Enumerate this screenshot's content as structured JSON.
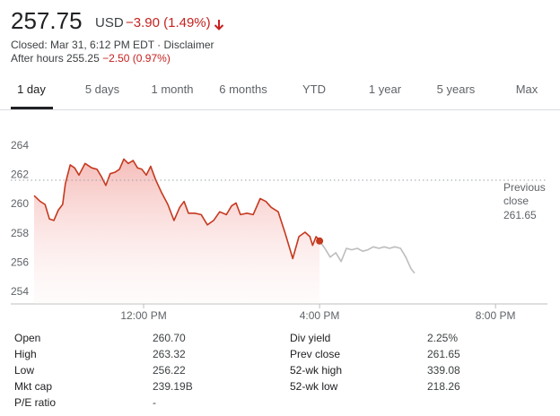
{
  "header": {
    "price": "257.75",
    "currency": "USD",
    "change": "−3.90 (1.49%)",
    "status": "Closed: Mar 31, 6:12 PM EDT · Disclaimer",
    "after_hours_label": "After hours",
    "after_hours_price": "255.25",
    "after_hours_change": "−2.50 (0.97%)"
  },
  "tabs": [
    "1 day",
    "5 days",
    "1 month",
    "6 months",
    "YTD",
    "1 year",
    "5 years",
    "Max"
  ],
  "chart_data": {
    "type": "line",
    "xlim": [
      8.98,
      21.18
    ],
    "xticks": [
      {
        "value": 12,
        "label": "12:00 PM"
      },
      {
        "value": 16,
        "label": "4:00 PM"
      },
      {
        "value": 20,
        "label": "8:00 PM"
      }
    ],
    "ylim": [
      253.2,
      264.9
    ],
    "yticks": [
      254,
      256,
      258,
      260,
      262,
      264
    ],
    "grid": false,
    "series": [
      {
        "color": "#c5391f",
        "x": [
          9.51,
          9.65,
          9.76,
          9.86,
          9.96,
          10.06,
          10.16,
          10.22,
          10.33,
          10.43,
          10.53,
          10.67,
          10.82,
          10.94,
          11.04,
          11.14,
          11.24,
          11.35,
          11.45,
          11.55,
          11.65,
          11.76,
          11.86,
          11.96,
          12.06,
          12.16,
          12.27,
          12.41,
          12.55,
          12.69,
          12.82,
          12.92,
          13.02,
          13.16,
          13.31,
          13.45,
          13.59,
          13.73,
          13.88,
          14.0,
          14.1,
          14.2,
          14.35,
          14.49,
          14.65,
          14.78,
          14.9,
          15.06,
          15.22,
          15.39,
          15.53,
          15.67,
          15.78,
          15.84,
          15.92,
          16.0
        ],
        "values": [
          260.6,
          260.2,
          260.0,
          259.0,
          258.9,
          259.6,
          260.0,
          261.4,
          262.7,
          262.5,
          262.0,
          262.8,
          262.5,
          262.4,
          261.9,
          261.3,
          262.1,
          262.2,
          262.4,
          263.1,
          262.8,
          263.0,
          262.5,
          262.4,
          262.0,
          262.6,
          261.7,
          260.8,
          260.0,
          258.9,
          259.8,
          260.2,
          259.4,
          259.4,
          259.3,
          258.6,
          258.9,
          259.5,
          259.3,
          259.9,
          260.1,
          259.3,
          259.4,
          259.3,
          260.4,
          260.2,
          259.8,
          259.5,
          258.0,
          256.3,
          257.8,
          258.1,
          257.8,
          257.2,
          257.8,
          257.5
        ]
      },
      {
        "color": "#bdbdbd",
        "x": [
          16.0,
          16.12,
          16.24,
          16.37,
          16.49,
          16.61,
          16.73,
          16.86,
          16.98,
          17.1,
          17.22,
          17.35,
          17.47,
          17.59,
          17.71,
          17.84,
          17.96,
          18.08,
          18.16
        ],
        "values": [
          257.5,
          257.0,
          256.4,
          256.7,
          256.1,
          257.0,
          256.9,
          257.0,
          256.8,
          256.9,
          257.1,
          257.0,
          257.1,
          257.0,
          257.1,
          257.0,
          256.4,
          255.6,
          255.3
        ]
      }
    ],
    "reference_line": {
      "label": "Previous close",
      "value": 261.65
    }
  },
  "stats": {
    "left": [
      [
        "Open",
        "260.70"
      ],
      [
        "High",
        "263.32"
      ],
      [
        "Low",
        "256.22"
      ],
      [
        "Mkt cap",
        "239.19B"
      ],
      [
        "P/E ratio",
        "-"
      ]
    ],
    "right": [
      [
        "Div yield",
        "2.25%"
      ],
      [
        "Prev close",
        "261.65"
      ],
      [
        "52-wk high",
        "339.08"
      ],
      [
        "52-wk low",
        "218.26"
      ]
    ]
  }
}
